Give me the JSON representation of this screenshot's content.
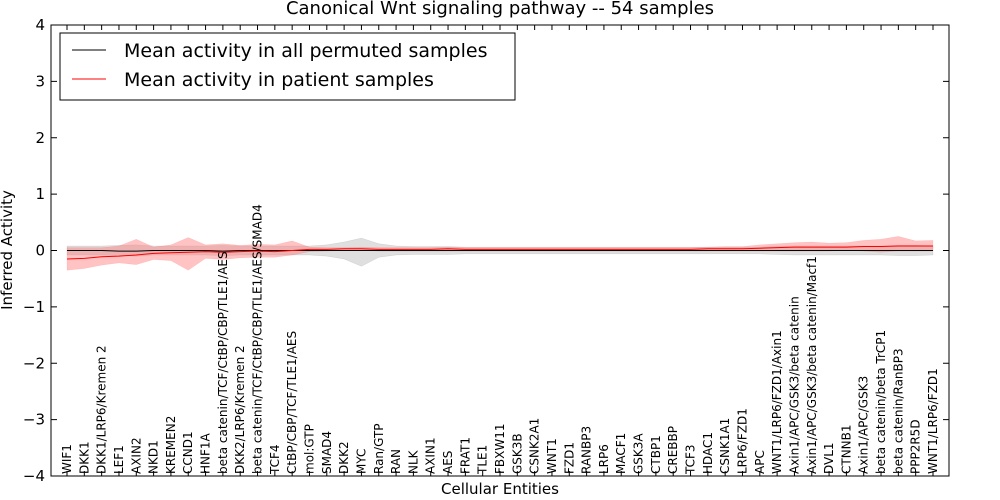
{
  "chart_data": {
    "type": "line",
    "title": "Canonical Wnt signaling pathway -- 54 samples",
    "xlabel": "Cellular Entities",
    "ylabel": "Inferred Activity",
    "ylim": [
      -4,
      4
    ],
    "yticks": [
      {
        "value": 4,
        "label": "4"
      },
      {
        "value": 3,
        "label": "3"
      },
      {
        "value": 2,
        "label": "2"
      },
      {
        "value": 1,
        "label": "1"
      },
      {
        "value": 0,
        "label": "0"
      },
      {
        "value": -1,
        "label": "−1"
      },
      {
        "value": -2,
        "label": "−2"
      },
      {
        "value": -3,
        "label": "−3"
      },
      {
        "value": -4,
        "label": "−4"
      }
    ],
    "legend_position": "top-left",
    "categories": [
      "WIF1",
      "DKK1",
      "DKK1/LRP6/Kremen 2",
      "LEF1",
      "AXIN2",
      "NKD1",
      "KREMEN2",
      "CCND1",
      "HNF1A",
      "beta catenin/TCF/CtBP/CBP/TLE1/AES",
      "DKK2/LRP6/Kremen 2",
      "beta catenin/TCF/CtBP/CBP/TLE1/AES/SMAD4",
      "TCF4",
      "CtBP/CBP/TCF/TLE1/AES",
      "mol:GTP",
      "SMAD4",
      "DKK2",
      "MYC",
      "Ran/GTP",
      "RAN",
      "NLK",
      "AXIN1",
      "AES",
      "FRAT1",
      "TLE1",
      "FBXW11",
      "GSK3B",
      "CSNK2A1",
      "WNT1",
      "FZD1",
      "RANBP3",
      "LRP6",
      "MACF1",
      "GSK3A",
      "CTBP1",
      "CREBBP",
      "TCF3",
      "HDAC1",
      "CSNK1A1",
      "LRP6/FZD1",
      "APC",
      "WNT1/LRP6/FZD1/Axin1",
      "Axin1/APC/GSK3/beta catenin",
      "Axin1/APC/GSK3/beta catenin/Macf1",
      "DVL1",
      "CTNNB1",
      "Axin1/APC/GSK3",
      "beta catenin/beta TrCP1",
      "beta catenin/RanBP3",
      "PPP2R5D",
      "WNT1/LRP6/FZD1"
    ],
    "series": [
      {
        "name": "Mean activity in all permuted samples",
        "color": "#000000",
        "band_color": "#b0b0b0",
        "values": [
          0.0,
          0.0,
          0.0,
          -0.01,
          -0.01,
          0.0,
          0.0,
          0.0,
          0.0,
          -0.01,
          0.0,
          0.0,
          0.0,
          0.0,
          0.0,
          0.0,
          0.0,
          0.0,
          0.0,
          0.0,
          0.0,
          0.0,
          0.0,
          0.0,
          0.0,
          0.0,
          0.0,
          0.0,
          0.0,
          0.0,
          0.0,
          0.0,
          0.0,
          0.0,
          0.0,
          0.0,
          0.0,
          0.0,
          0.0,
          0.0,
          0.0,
          0.0,
          0.0,
          0.0,
          0.0,
          0.0,
          0.0,
          0.0,
          0.0,
          0.0,
          0.0
        ],
        "band_low": [
          -0.08,
          -0.08,
          -0.08,
          -0.09,
          -0.1,
          -0.08,
          -0.08,
          -0.08,
          -0.08,
          -0.09,
          -0.08,
          -0.08,
          -0.08,
          -0.08,
          -0.08,
          -0.1,
          -0.15,
          -0.28,
          -0.12,
          -0.08,
          -0.07,
          -0.07,
          -0.07,
          -0.06,
          -0.06,
          -0.06,
          -0.06,
          -0.06,
          -0.06,
          -0.06,
          -0.06,
          -0.06,
          -0.06,
          -0.06,
          -0.06,
          -0.06,
          -0.06,
          -0.06,
          -0.06,
          -0.06,
          -0.06,
          -0.07,
          -0.08,
          -0.08,
          -0.08,
          -0.08,
          -0.08,
          -0.08,
          -0.09,
          -0.09,
          -0.08
        ],
        "band_high": [
          0.08,
          0.08,
          0.08,
          0.09,
          0.1,
          0.08,
          0.08,
          0.08,
          0.08,
          0.09,
          0.08,
          0.08,
          0.08,
          0.08,
          0.08,
          0.1,
          0.15,
          0.22,
          0.12,
          0.08,
          0.07,
          0.07,
          0.07,
          0.06,
          0.06,
          0.06,
          0.06,
          0.06,
          0.06,
          0.06,
          0.06,
          0.06,
          0.06,
          0.06,
          0.06,
          0.06,
          0.06,
          0.06,
          0.06,
          0.06,
          0.06,
          0.07,
          0.08,
          0.08,
          0.08,
          0.08,
          0.08,
          0.08,
          0.09,
          0.09,
          0.08
        ]
      },
      {
        "name": "Mean activity in patient samples",
        "color": "#ff0000",
        "band_color": "#ff7a7a",
        "values": [
          -0.15,
          -0.14,
          -0.11,
          -0.1,
          -0.08,
          -0.05,
          -0.04,
          -0.03,
          -0.02,
          -0.03,
          -0.02,
          -0.01,
          -0.02,
          0.0,
          0.02,
          0.02,
          0.03,
          0.03,
          0.02,
          0.02,
          0.02,
          0.02,
          0.03,
          0.02,
          0.02,
          0.02,
          0.02,
          0.02,
          0.02,
          0.02,
          0.02,
          0.02,
          0.02,
          0.02,
          0.02,
          0.02,
          0.02,
          0.03,
          0.03,
          0.03,
          0.04,
          0.05,
          0.06,
          0.06,
          0.06,
          0.06,
          0.07,
          0.07,
          0.08,
          0.08,
          0.08
        ],
        "band_low": [
          -0.35,
          -0.32,
          -0.26,
          -0.22,
          -0.25,
          -0.16,
          -0.18,
          -0.35,
          -0.14,
          -0.16,
          -0.13,
          -0.12,
          -0.12,
          -0.08,
          -0.02,
          -0.01,
          0.0,
          0.0,
          -0.01,
          -0.01,
          -0.01,
          -0.01,
          -0.01,
          -0.01,
          -0.01,
          -0.01,
          -0.01,
          -0.01,
          -0.01,
          -0.01,
          -0.01,
          -0.01,
          -0.01,
          -0.01,
          -0.01,
          -0.01,
          -0.01,
          -0.01,
          -0.01,
          -0.01,
          -0.01,
          -0.01,
          -0.01,
          -0.01,
          -0.01,
          0.0,
          -0.01,
          -0.03,
          -0.01,
          -0.01,
          -0.01
        ],
        "band_high": [
          0.05,
          0.05,
          0.05,
          0.08,
          0.2,
          0.06,
          0.1,
          0.23,
          0.1,
          0.12,
          0.09,
          0.11,
          0.1,
          0.17,
          0.06,
          0.05,
          0.05,
          0.06,
          0.05,
          0.05,
          0.05,
          0.05,
          0.06,
          0.05,
          0.05,
          0.05,
          0.05,
          0.05,
          0.05,
          0.05,
          0.05,
          0.05,
          0.05,
          0.05,
          0.05,
          0.05,
          0.05,
          0.06,
          0.07,
          0.07,
          0.1,
          0.12,
          0.14,
          0.15,
          0.13,
          0.14,
          0.18,
          0.2,
          0.25,
          0.17,
          0.18
        ]
      }
    ]
  }
}
